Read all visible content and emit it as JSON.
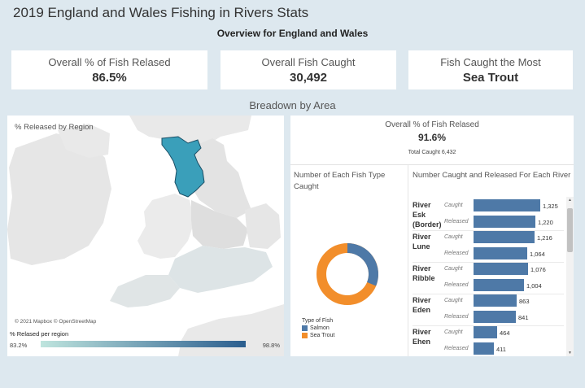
{
  "header": {
    "title": "2019 England and Wales Fishing in Rivers Stats",
    "subtitle": "Overview for England and Wales"
  },
  "kpis": [
    {
      "label": "Overall % of Fish Relased",
      "value": "86.5%"
    },
    {
      "label": "Overall Fish Caught",
      "value": "30,492"
    },
    {
      "label": "Fish Caught the Most",
      "value": "Sea Trout"
    }
  ],
  "section_title": "Breadown by Area",
  "map": {
    "label": "% Released by Region",
    "attribution": "© 2021 Mapbox © OpenStreetMap",
    "legend_title": "% Relased per region",
    "legend_min": "83.2%",
    "legend_max": "98.8%",
    "highlight_color": "#3a9fba",
    "legend_low_color": "#bfe5de",
    "legend_high_color": "#2a5d8e"
  },
  "region_kpi": {
    "label": "Overall % of Fish Relased",
    "value": "91.6%",
    "total_caught": "Total Caught 6,432"
  },
  "fish_type": {
    "title": "Number of Each Fish Type Caught",
    "legend_title": "Type of Fish",
    "items": [
      {
        "name": "Salmon",
        "color": "#4e79a7"
      },
      {
        "name": "Sea Trout",
        "color": "#f28e2b"
      }
    ]
  },
  "chart_data": {
    "type": "bar",
    "title": "Number Caught and Released For Each River",
    "categories": [
      "River Esk (Border)",
      "River Lune",
      "River Ribble",
      "River Eden",
      "River Ehen"
    ],
    "series": [
      {
        "name": "Caught",
        "values": [
          1325,
          1216,
          1076,
          863,
          464
        ],
        "labels": [
          "1,325",
          "1,216",
          "1,076",
          "863",
          "464"
        ]
      },
      {
        "name": "Released",
        "values": [
          1220,
          1064,
          1004,
          841,
          411
        ],
        "labels": [
          "1,220",
          "1,064",
          "1,004",
          "841",
          "411"
        ]
      }
    ],
    "bar_color": "#4e79a7",
    "xlim": [
      0,
      1325
    ]
  }
}
